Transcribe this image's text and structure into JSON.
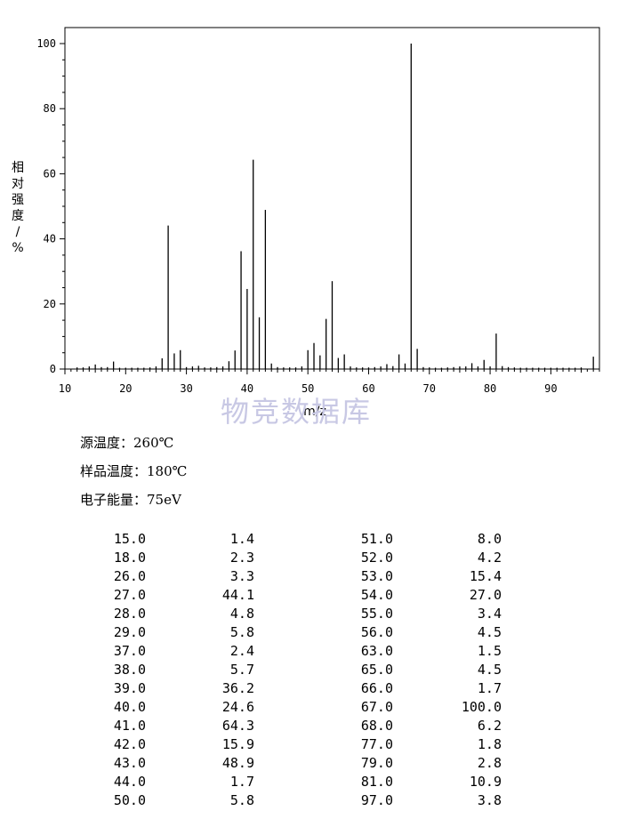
{
  "chart_data": {
    "type": "bar",
    "xlabel": "m/z",
    "ylabel": "相对强度/%",
    "xlim": [
      10,
      98
    ],
    "ylim": [
      0,
      105
    ],
    "xticks": [
      10,
      20,
      30,
      40,
      50,
      60,
      70,
      80,
      90
    ],
    "yticks": [
      0,
      20,
      40,
      60,
      80,
      100
    ],
    "grid": false,
    "peaks": [
      {
        "mz": 12.0,
        "ab": 0.5
      },
      {
        "mz": 13.0,
        "ab": 0.5
      },
      {
        "mz": 14.0,
        "ab": 0.8
      },
      {
        "mz": 15.0,
        "ab": 1.4
      },
      {
        "mz": 16.0,
        "ab": 0.6
      },
      {
        "mz": 17.0,
        "ab": 0.6
      },
      {
        "mz": 18.0,
        "ab": 2.3
      },
      {
        "mz": 19.0,
        "ab": 0.4
      },
      {
        "mz": 20.0,
        "ab": 0.4
      },
      {
        "mz": 21.0,
        "ab": 0.4
      },
      {
        "mz": 22.0,
        "ab": 0.4
      },
      {
        "mz": 23.0,
        "ab": 0.4
      },
      {
        "mz": 24.0,
        "ab": 0.5
      },
      {
        "mz": 25.0,
        "ab": 0.8
      },
      {
        "mz": 26.0,
        "ab": 3.3
      },
      {
        "mz": 27.0,
        "ab": 44.1
      },
      {
        "mz": 28.0,
        "ab": 4.8
      },
      {
        "mz": 29.0,
        "ab": 5.8
      },
      {
        "mz": 30.0,
        "ab": 0.6
      },
      {
        "mz": 31.0,
        "ab": 0.8
      },
      {
        "mz": 32.0,
        "ab": 1.0
      },
      {
        "mz": 33.0,
        "ab": 0.5
      },
      {
        "mz": 34.0,
        "ab": 0.5
      },
      {
        "mz": 35.0,
        "ab": 0.6
      },
      {
        "mz": 36.0,
        "ab": 0.8
      },
      {
        "mz": 37.0,
        "ab": 2.4
      },
      {
        "mz": 38.0,
        "ab": 5.7
      },
      {
        "mz": 39.0,
        "ab": 36.2
      },
      {
        "mz": 40.0,
        "ab": 24.6
      },
      {
        "mz": 41.0,
        "ab": 64.3
      },
      {
        "mz": 42.0,
        "ab": 15.9
      },
      {
        "mz": 43.0,
        "ab": 48.9
      },
      {
        "mz": 44.0,
        "ab": 1.7
      },
      {
        "mz": 45.0,
        "ab": 0.6
      },
      {
        "mz": 46.0,
        "ab": 0.5
      },
      {
        "mz": 47.0,
        "ab": 0.5
      },
      {
        "mz": 48.0,
        "ab": 0.5
      },
      {
        "mz": 49.0,
        "ab": 0.8
      },
      {
        "mz": 50.0,
        "ab": 5.8
      },
      {
        "mz": 51.0,
        "ab": 8.0
      },
      {
        "mz": 52.0,
        "ab": 4.2
      },
      {
        "mz": 53.0,
        "ab": 15.4
      },
      {
        "mz": 54.0,
        "ab": 27.0
      },
      {
        "mz": 55.0,
        "ab": 3.4
      },
      {
        "mz": 56.0,
        "ab": 4.5
      },
      {
        "mz": 57.0,
        "ab": 0.8
      },
      {
        "mz": 58.0,
        "ab": 0.5
      },
      {
        "mz": 59.0,
        "ab": 0.5
      },
      {
        "mz": 60.0,
        "ab": 0.5
      },
      {
        "mz": 61.0,
        "ab": 0.6
      },
      {
        "mz": 62.0,
        "ab": 0.8
      },
      {
        "mz": 63.0,
        "ab": 1.5
      },
      {
        "mz": 64.0,
        "ab": 0.9
      },
      {
        "mz": 65.0,
        "ab": 4.5
      },
      {
        "mz": 66.0,
        "ab": 1.7
      },
      {
        "mz": 67.0,
        "ab": 100.0
      },
      {
        "mz": 68.0,
        "ab": 6.2
      },
      {
        "mz": 69.0,
        "ab": 0.6
      },
      {
        "mz": 70.0,
        "ab": 0.5
      },
      {
        "mz": 71.0,
        "ab": 0.4
      },
      {
        "mz": 72.0,
        "ab": 0.4
      },
      {
        "mz": 73.0,
        "ab": 0.5
      },
      {
        "mz": 74.0,
        "ab": 0.6
      },
      {
        "mz": 75.0,
        "ab": 0.8
      },
      {
        "mz": 76.0,
        "ab": 0.8
      },
      {
        "mz": 77.0,
        "ab": 1.8
      },
      {
        "mz": 78.0,
        "ab": 0.8
      },
      {
        "mz": 79.0,
        "ab": 2.8
      },
      {
        "mz": 80.0,
        "ab": 0.8
      },
      {
        "mz": 81.0,
        "ab": 10.9
      },
      {
        "mz": 82.0,
        "ab": 0.9
      },
      {
        "mz": 83.0,
        "ab": 0.6
      },
      {
        "mz": 84.0,
        "ab": 0.5
      },
      {
        "mz": 85.0,
        "ab": 0.4
      },
      {
        "mz": 86.0,
        "ab": 0.4
      },
      {
        "mz": 87.0,
        "ab": 0.4
      },
      {
        "mz": 88.0,
        "ab": 0.4
      },
      {
        "mz": 89.0,
        "ab": 0.4
      },
      {
        "mz": 90.0,
        "ab": 0.4
      },
      {
        "mz": 91.0,
        "ab": 0.4
      },
      {
        "mz": 92.0,
        "ab": 0.4
      },
      {
        "mz": 93.0,
        "ab": 0.4
      },
      {
        "mz": 94.0,
        "ab": 0.4
      },
      {
        "mz": 95.0,
        "ab": 0.5
      },
      {
        "mz": 97.0,
        "ab": 3.8
      }
    ]
  },
  "watermark": "物竞数据库",
  "meta": {
    "source_temp_label": "源温度：",
    "source_temp_value": "260℃",
    "sample_temp_label": "样品温度：",
    "sample_temp_value": "180℃",
    "electron_energy_label": "电子能量：",
    "electron_energy_value": "75eV"
  },
  "peak_table": {
    "left": [
      {
        "mz": "15.0",
        "ab": "1.4"
      },
      {
        "mz": "18.0",
        "ab": "2.3"
      },
      {
        "mz": "26.0",
        "ab": "3.3"
      },
      {
        "mz": "27.0",
        "ab": "44.1"
      },
      {
        "mz": "28.0",
        "ab": "4.8"
      },
      {
        "mz": "29.0",
        "ab": "5.8"
      },
      {
        "mz": "37.0",
        "ab": "2.4"
      },
      {
        "mz": "38.0",
        "ab": "5.7"
      },
      {
        "mz": "39.0",
        "ab": "36.2"
      },
      {
        "mz": "40.0",
        "ab": "24.6"
      },
      {
        "mz": "41.0",
        "ab": "64.3"
      },
      {
        "mz": "42.0",
        "ab": "15.9"
      },
      {
        "mz": "43.0",
        "ab": "48.9"
      },
      {
        "mz": "44.0",
        "ab": "1.7"
      },
      {
        "mz": "50.0",
        "ab": "5.8"
      }
    ],
    "right": [
      {
        "mz": "51.0",
        "ab": "8.0"
      },
      {
        "mz": "52.0",
        "ab": "4.2"
      },
      {
        "mz": "53.0",
        "ab": "15.4"
      },
      {
        "mz": "54.0",
        "ab": "27.0"
      },
      {
        "mz": "55.0",
        "ab": "3.4"
      },
      {
        "mz": "56.0",
        "ab": "4.5"
      },
      {
        "mz": "63.0",
        "ab": "1.5"
      },
      {
        "mz": "65.0",
        "ab": "4.5"
      },
      {
        "mz": "66.0",
        "ab": "1.7"
      },
      {
        "mz": "67.0",
        "ab": "100.0"
      },
      {
        "mz": "68.0",
        "ab": "6.2"
      },
      {
        "mz": "77.0",
        "ab": "1.8"
      },
      {
        "mz": "79.0",
        "ab": "2.8"
      },
      {
        "mz": "81.0",
        "ab": "10.9"
      },
      {
        "mz": "97.0",
        "ab": "3.8"
      }
    ]
  }
}
